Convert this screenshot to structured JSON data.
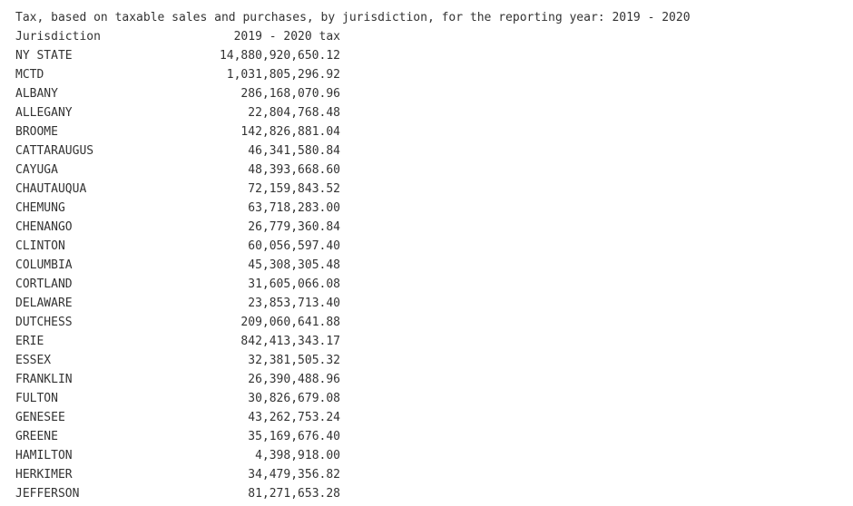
{
  "output": {
    "title": "Tax, based on taxable sales and purchases, by jurisdiction, for the reporting year: 2019 - 2020",
    "headers": {
      "jurisdiction": "Jurisdiction",
      "tax": "2019 - 2020 tax"
    },
    "rows": [
      {
        "jurisdiction": "NY STATE",
        "tax": "14,880,920,650.12"
      },
      {
        "jurisdiction": "MCTD",
        "tax": "1,031,805,296.92"
      },
      {
        "jurisdiction": "ALBANY",
        "tax": "286,168,070.96"
      },
      {
        "jurisdiction": "ALLEGANY",
        "tax": "22,804,768.48"
      },
      {
        "jurisdiction": "BROOME",
        "tax": "142,826,881.04"
      },
      {
        "jurisdiction": "CATTARAUGUS",
        "tax": "46,341,580.84"
      },
      {
        "jurisdiction": "CAYUGA",
        "tax": "48,393,668.60"
      },
      {
        "jurisdiction": "CHAUTAUQUA",
        "tax": "72,159,843.52"
      },
      {
        "jurisdiction": "CHEMUNG",
        "tax": "63,718,283.00"
      },
      {
        "jurisdiction": "CHENANGO",
        "tax": "26,779,360.84"
      },
      {
        "jurisdiction": "CLINTON",
        "tax": "60,056,597.40"
      },
      {
        "jurisdiction": "COLUMBIA",
        "tax": "45,308,305.48"
      },
      {
        "jurisdiction": "CORTLAND",
        "tax": "31,605,066.08"
      },
      {
        "jurisdiction": "DELAWARE",
        "tax": "23,853,713.40"
      },
      {
        "jurisdiction": "DUTCHESS",
        "tax": "209,060,641.88"
      },
      {
        "jurisdiction": "ERIE",
        "tax": "842,413,343.17"
      },
      {
        "jurisdiction": "ESSEX",
        "tax": "32,381,505.32"
      },
      {
        "jurisdiction": "FRANKLIN",
        "tax": "26,390,488.96"
      },
      {
        "jurisdiction": "FULTON",
        "tax": "30,826,679.08"
      },
      {
        "jurisdiction": "GENESEE",
        "tax": "43,262,753.24"
      },
      {
        "jurisdiction": "GREENE",
        "tax": "35,169,676.40"
      },
      {
        "jurisdiction": "HAMILTON",
        "tax": "4,398,918.00"
      },
      {
        "jurisdiction": "HERKIMER",
        "tax": "34,479,356.82"
      },
      {
        "jurisdiction": "JEFFERSON",
        "tax": "81,271,653.28"
      }
    ]
  }
}
